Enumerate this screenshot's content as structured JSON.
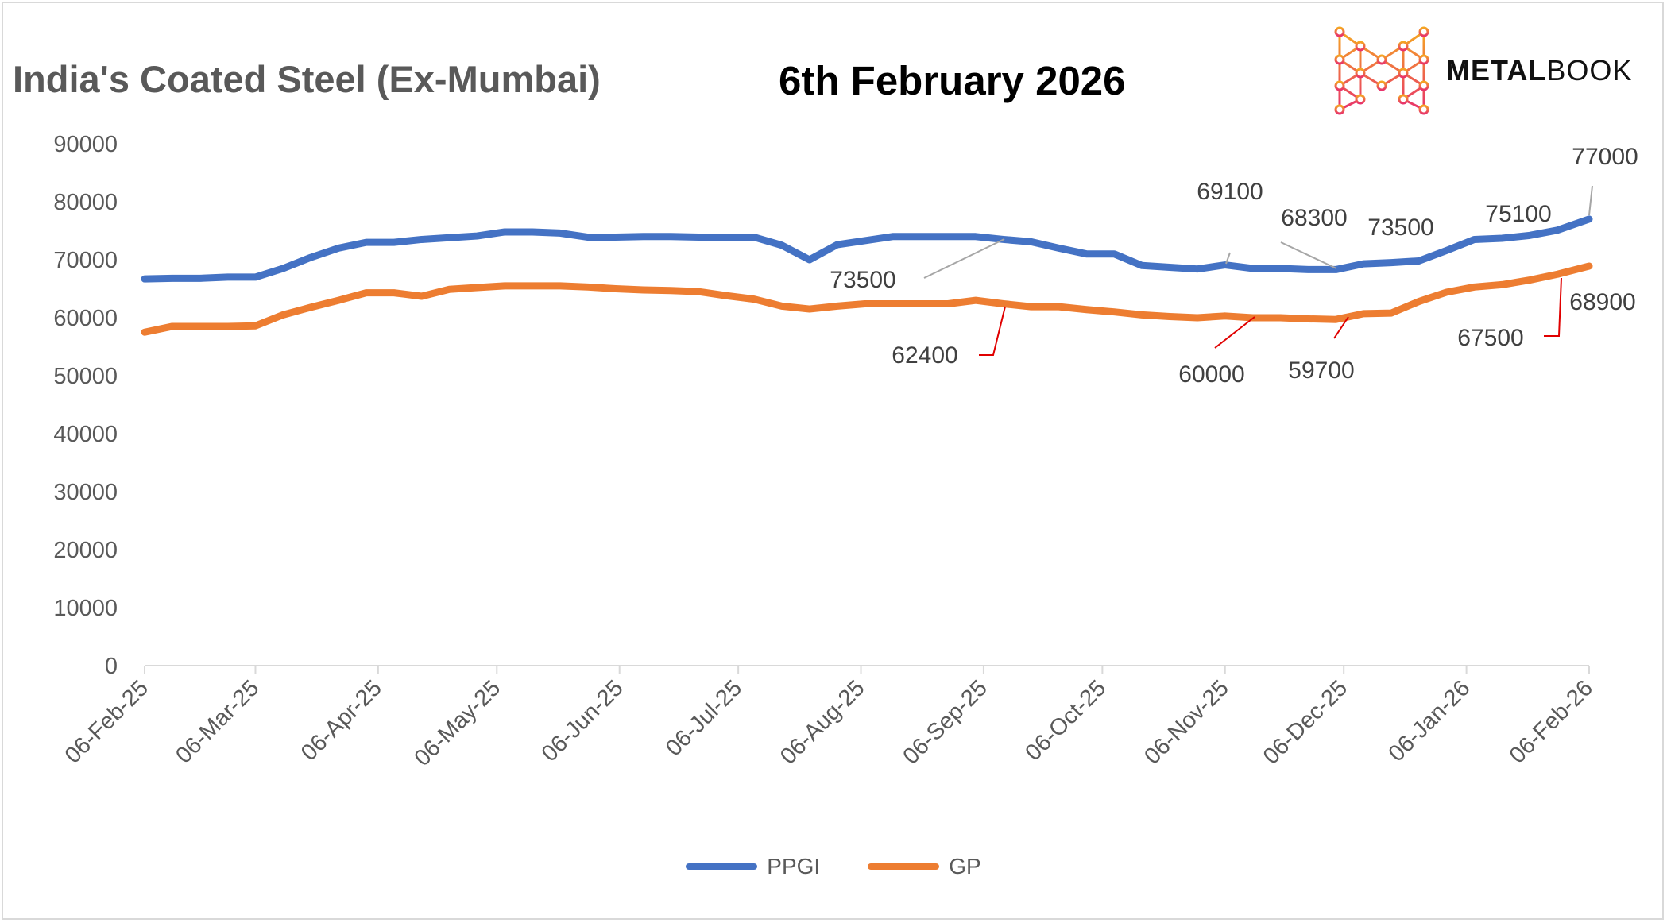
{
  "header": {
    "title": "India's Coated Steel (Ex-Mumbai)",
    "date": "6th February 2026"
  },
  "logo": {
    "text_bold": "METAL",
    "text_light": "BOOK"
  },
  "chart_data": {
    "type": "line",
    "title": "India's Coated Steel (Ex-Mumbai)",
    "xlabel": "",
    "ylabel": "",
    "ylim": [
      0,
      90000
    ],
    "yticks": [
      0,
      10000,
      20000,
      30000,
      40000,
      50000,
      60000,
      70000,
      80000,
      90000
    ],
    "x_unit": "days since 06-Feb-25",
    "xlim": [
      0,
      365
    ],
    "xticks": [
      {
        "day": 0,
        "label": "06-Feb-25"
      },
      {
        "day": 28,
        "label": "06-Mar-25"
      },
      {
        "day": 59,
        "label": "06-Apr-25"
      },
      {
        "day": 89,
        "label": "06-May-25"
      },
      {
        "day": 120,
        "label": "06-Jun-25"
      },
      {
        "day": 150,
        "label": "06-Jul-25"
      },
      {
        "day": 181,
        "label": "06-Aug-25"
      },
      {
        "day": 212,
        "label": "06-Sep-25"
      },
      {
        "day": 242,
        "label": "06-Oct-25"
      },
      {
        "day": 273,
        "label": "06-Nov-25"
      },
      {
        "day": 303,
        "label": "06-Dec-25"
      },
      {
        "day": 334,
        "label": "06-Jan-26"
      },
      {
        "day": 365,
        "label": "06-Feb-26"
      }
    ],
    "grid": false,
    "legend": "bottom",
    "series": [
      {
        "name": "PPGI",
        "color": "#4472C4",
        "values": [
          66700,
          66800,
          66800,
          67000,
          67000,
          68500,
          70400,
          72000,
          73000,
          73000,
          73500,
          73800,
          74100,
          74800,
          74800,
          74600,
          73900,
          73900,
          74000,
          74000,
          73900,
          73900,
          73900,
          72500,
          70000,
          72600,
          73300,
          74000,
          74000,
          74000,
          74000,
          73500,
          73100,
          72000,
          71000,
          71000,
          69000,
          68700,
          68400,
          69100,
          68500,
          68500,
          68300,
          68300,
          69300,
          69500,
          69800,
          71600,
          73500,
          73700,
          74200,
          75100,
          77000
        ]
      },
      {
        "name": "GP",
        "color": "#ED7D31",
        "values": [
          57500,
          58500,
          58500,
          58500,
          58600,
          60500,
          61800,
          63000,
          64300,
          64300,
          63700,
          64900,
          65200,
          65500,
          65500,
          65500,
          65300,
          65000,
          64800,
          64700,
          64500,
          63800,
          63200,
          62000,
          61500,
          62000,
          62400,
          62400,
          62400,
          62400,
          63000,
          62400,
          61900,
          61900,
          61400,
          61000,
          60500,
          60200,
          60000,
          60300,
          60000,
          60000,
          59800,
          59700,
          60700,
          60800,
          62800,
          64400,
          65300,
          65700,
          66500,
          67500,
          68900
        ]
      }
    ],
    "data_labels": [
      {
        "series": "PPGI",
        "text": "73500"
      },
      {
        "series": "GP",
        "text": "62400"
      },
      {
        "series": "PPGI",
        "text": "69100"
      },
      {
        "series": "PPGI",
        "text": "68300"
      },
      {
        "series": "GP",
        "text": "60000"
      },
      {
        "series": "GP",
        "text": "59700"
      },
      {
        "series": "PPGI",
        "text": "73500"
      },
      {
        "series": "PPGI",
        "text": "75100"
      },
      {
        "series": "PPGI",
        "text": "77000"
      },
      {
        "series": "GP",
        "text": "67500"
      },
      {
        "series": "GP",
        "text": "68900"
      }
    ]
  }
}
